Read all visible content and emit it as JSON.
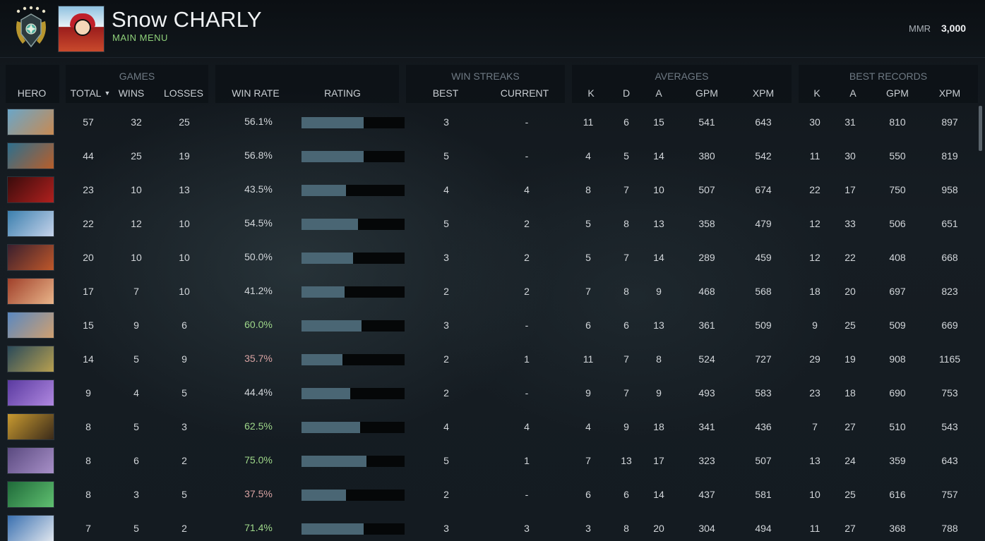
{
  "player": {
    "name": "Snow CHARLY",
    "menu_link": "MAIN MENU",
    "mmr_label": "MMR",
    "mmr_value": "3,000"
  },
  "groups": {
    "games": "GAMES",
    "win_streaks": "WIN STREAKS",
    "averages": "AVERAGES",
    "best_records": "BEST RECORDS"
  },
  "columns": {
    "hero": "HERO",
    "total": "TOTAL",
    "wins": "WINS",
    "losses": "LOSSES",
    "win_rate": "WIN RATE",
    "rating": "RATING",
    "best": "BEST",
    "current": "CURRENT",
    "avg_k": "K",
    "avg_d": "D",
    "avg_a": "A",
    "avg_gpm": "GPM",
    "avg_xpm": "XPM",
    "rec_k": "K",
    "rec_a": "A",
    "rec_gpm": "GPM",
    "rec_xpm": "XPM"
  },
  "icons": {
    "sort": "chevron-down-icon",
    "rank": "rank-medal-icon"
  },
  "colors": {
    "win_rate_high": "#9fd88a",
    "win_rate_low": "#d9a3a3",
    "rating_bar": "#4a6674",
    "menu_link": "#8fd17a"
  },
  "rows": [
    {
      "total": "57",
      "wins": "32",
      "losses": "25",
      "win_rate": "56.1%",
      "rating": 0.6,
      "best": "3",
      "current": "-",
      "k": "11",
      "d": "6",
      "a": "15",
      "gpm": "541",
      "xpm": "643",
      "rk": "30",
      "ra": "31",
      "rgpm": "810",
      "rxpm": "897",
      "tone": "neutral",
      "hero_colors": [
        "#6aa6c8",
        "#c88a52"
      ]
    },
    {
      "total": "44",
      "wins": "25",
      "losses": "19",
      "win_rate": "56.8%",
      "rating": 0.6,
      "best": "5",
      "current": "-",
      "k": "4",
      "d": "5",
      "a": "14",
      "gpm": "380",
      "xpm": "542",
      "rk": "11",
      "ra": "30",
      "rgpm": "550",
      "rxpm": "819",
      "tone": "neutral",
      "hero_colors": [
        "#2d6f8e",
        "#b85e2a"
      ]
    },
    {
      "total": "23",
      "wins": "10",
      "losses": "13",
      "win_rate": "43.5%",
      "rating": 0.43,
      "best": "4",
      "current": "4",
      "k": "8",
      "d": "7",
      "a": "10",
      "gpm": "507",
      "xpm": "674",
      "rk": "22",
      "ra": "17",
      "rgpm": "750",
      "rxpm": "958",
      "tone": "neutral",
      "hero_colors": [
        "#3a0c0c",
        "#b0201e"
      ]
    },
    {
      "total": "22",
      "wins": "12",
      "losses": "10",
      "win_rate": "54.5%",
      "rating": 0.55,
      "best": "5",
      "current": "2",
      "k": "5",
      "d": "8",
      "a": "13",
      "gpm": "358",
      "xpm": "479",
      "rk": "12",
      "ra": "33",
      "rgpm": "506",
      "rxpm": "651",
      "tone": "neutral",
      "hero_colors": [
        "#3b7fae",
        "#c6d3ea"
      ]
    },
    {
      "total": "20",
      "wins": "10",
      "losses": "10",
      "win_rate": "50.0%",
      "rating": 0.5,
      "best": "3",
      "current": "2",
      "k": "5",
      "d": "7",
      "a": "14",
      "gpm": "289",
      "xpm": "459",
      "rk": "12",
      "ra": "22",
      "rgpm": "408",
      "rxpm": "668",
      "tone": "neutral",
      "hero_colors": [
        "#3a1f2e",
        "#c0582a"
      ]
    },
    {
      "total": "17",
      "wins": "7",
      "losses": "10",
      "win_rate": "41.2%",
      "rating": 0.42,
      "best": "2",
      "current": "2",
      "k": "7",
      "d": "8",
      "a": "9",
      "gpm": "468",
      "xpm": "568",
      "rk": "18",
      "ra": "20",
      "rgpm": "697",
      "rxpm": "823",
      "tone": "neutral",
      "hero_colors": [
        "#a0402a",
        "#e9b58a"
      ]
    },
    {
      "total": "15",
      "wins": "9",
      "losses": "6",
      "win_rate": "60.0%",
      "rating": 0.58,
      "best": "3",
      "current": "-",
      "k": "6",
      "d": "6",
      "a": "13",
      "gpm": "361",
      "xpm": "509",
      "rk": "9",
      "ra": "25",
      "rgpm": "509",
      "rxpm": "669",
      "tone": "high",
      "hero_colors": [
        "#5a88c0",
        "#d0a070"
      ]
    },
    {
      "total": "14",
      "wins": "5",
      "losses": "9",
      "win_rate": "35.7%",
      "rating": 0.4,
      "best": "2",
      "current": "1",
      "k": "11",
      "d": "7",
      "a": "8",
      "gpm": "524",
      "xpm": "727",
      "rk": "29",
      "ra": "19",
      "rgpm": "908",
      "rxpm": "1165",
      "tone": "low",
      "hero_colors": [
        "#2a4a5a",
        "#b8a050"
      ]
    },
    {
      "total": "9",
      "wins": "4",
      "losses": "5",
      "win_rate": "44.4%",
      "rating": 0.47,
      "best": "2",
      "current": "-",
      "k": "9",
      "d": "7",
      "a": "9",
      "gpm": "493",
      "xpm": "583",
      "rk": "23",
      "ra": "18",
      "rgpm": "690",
      "rxpm": "753",
      "tone": "neutral",
      "hero_colors": [
        "#5a3aa0",
        "#b088e0"
      ]
    },
    {
      "total": "8",
      "wins": "5",
      "losses": "3",
      "win_rate": "62.5%",
      "rating": 0.57,
      "best": "4",
      "current": "4",
      "k": "4",
      "d": "9",
      "a": "18",
      "gpm": "341",
      "xpm": "436",
      "rk": "7",
      "ra": "27",
      "rgpm": "510",
      "rxpm": "543",
      "tone": "high",
      "hero_colors": [
        "#c89a30",
        "#3a2a1a"
      ]
    },
    {
      "total": "8",
      "wins": "6",
      "losses": "2",
      "win_rate": "75.0%",
      "rating": 0.63,
      "best": "5",
      "current": "1",
      "k": "7",
      "d": "13",
      "a": "17",
      "gpm": "323",
      "xpm": "507",
      "rk": "13",
      "ra": "24",
      "rgpm": "359",
      "rxpm": "643",
      "tone": "high",
      "hero_colors": [
        "#5a4a80",
        "#a890c8"
      ]
    },
    {
      "total": "8",
      "wins": "3",
      "losses": "5",
      "win_rate": "37.5%",
      "rating": 0.43,
      "best": "2",
      "current": "-",
      "k": "6",
      "d": "6",
      "a": "14",
      "gpm": "437",
      "xpm": "581",
      "rk": "10",
      "ra": "25",
      "rgpm": "616",
      "rxpm": "757",
      "tone": "low",
      "hero_colors": [
        "#1f6a3a",
        "#60c070"
      ]
    },
    {
      "total": "7",
      "wins": "5",
      "losses": "2",
      "win_rate": "71.4%",
      "rating": 0.6,
      "best": "3",
      "current": "3",
      "k": "3",
      "d": "8",
      "a": "20",
      "gpm": "304",
      "xpm": "494",
      "rk": "11",
      "ra": "27",
      "rgpm": "368",
      "rxpm": "788",
      "tone": "high",
      "hero_colors": [
        "#3a70b0",
        "#e0e6ee"
      ]
    }
  ]
}
